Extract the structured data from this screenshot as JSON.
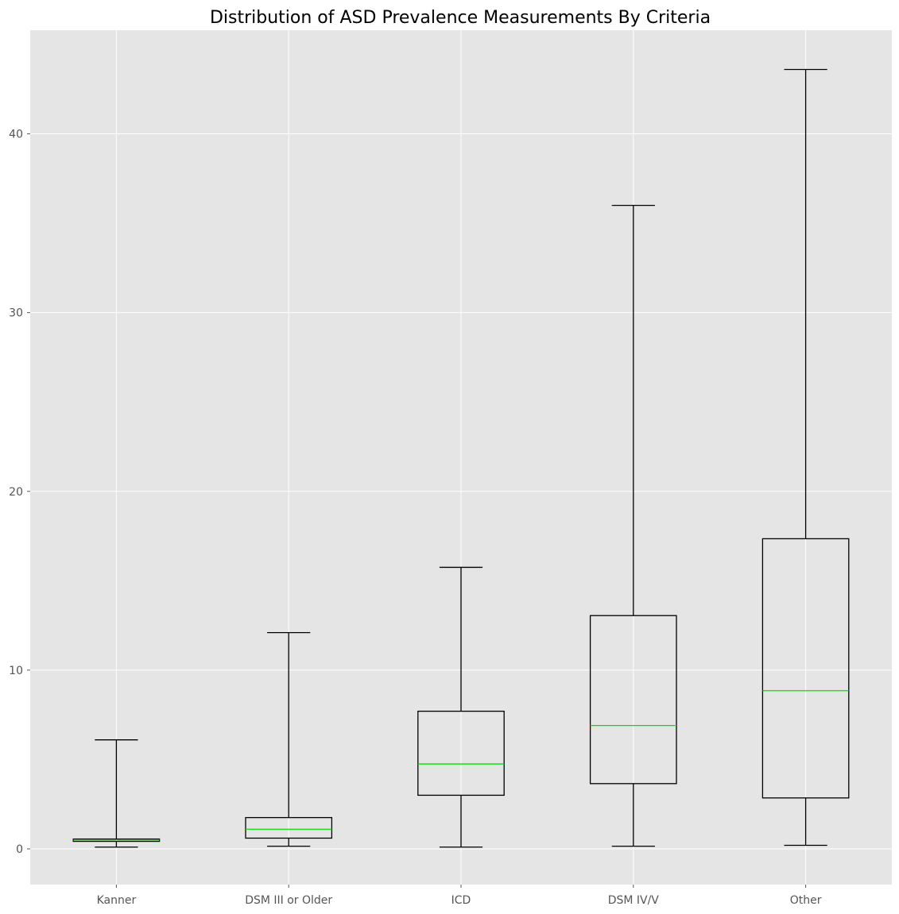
{
  "chart_data": {
    "type": "box",
    "title": "Distribution of ASD Prevalence Measurements By Criteria",
    "xlabel": "",
    "ylabel": "",
    "ylim": [
      -2.0,
      45.8
    ],
    "yticks": [
      0,
      10,
      20,
      30,
      40
    ],
    "categories": [
      "Kanner",
      "DSM III or Older",
      "ICD",
      "DSM IV/V",
      "Other"
    ],
    "boxes": [
      {
        "label": "Kanner",
        "whisker_low": 0.1,
        "q1": 0.42,
        "median": 0.5,
        "q3": 0.55,
        "whisker_high": 6.1
      },
      {
        "label": "DSM III or Older",
        "whisker_low": 0.15,
        "q1": 0.6,
        "median": 1.1,
        "q3": 1.75,
        "whisker_high": 12.1
      },
      {
        "label": "ICD",
        "whisker_low": 0.1,
        "q1": 3.0,
        "median": 4.75,
        "q3": 7.7,
        "whisker_high": 15.75
      },
      {
        "label": "DSM IV/V",
        "whisker_low": 0.15,
        "q1": 3.65,
        "median": 6.9,
        "q3": 13.05,
        "whisker_high": 36.0
      },
      {
        "label": "Other",
        "whisker_low": 0.2,
        "q1": 2.85,
        "median": 8.85,
        "q3": 17.35,
        "whisker_high": 43.6
      }
    ],
    "grid": true,
    "colors": {
      "background": "#e5e5e5",
      "grid": "#ffffff",
      "box": "#000000",
      "median": "#00e000"
    }
  }
}
